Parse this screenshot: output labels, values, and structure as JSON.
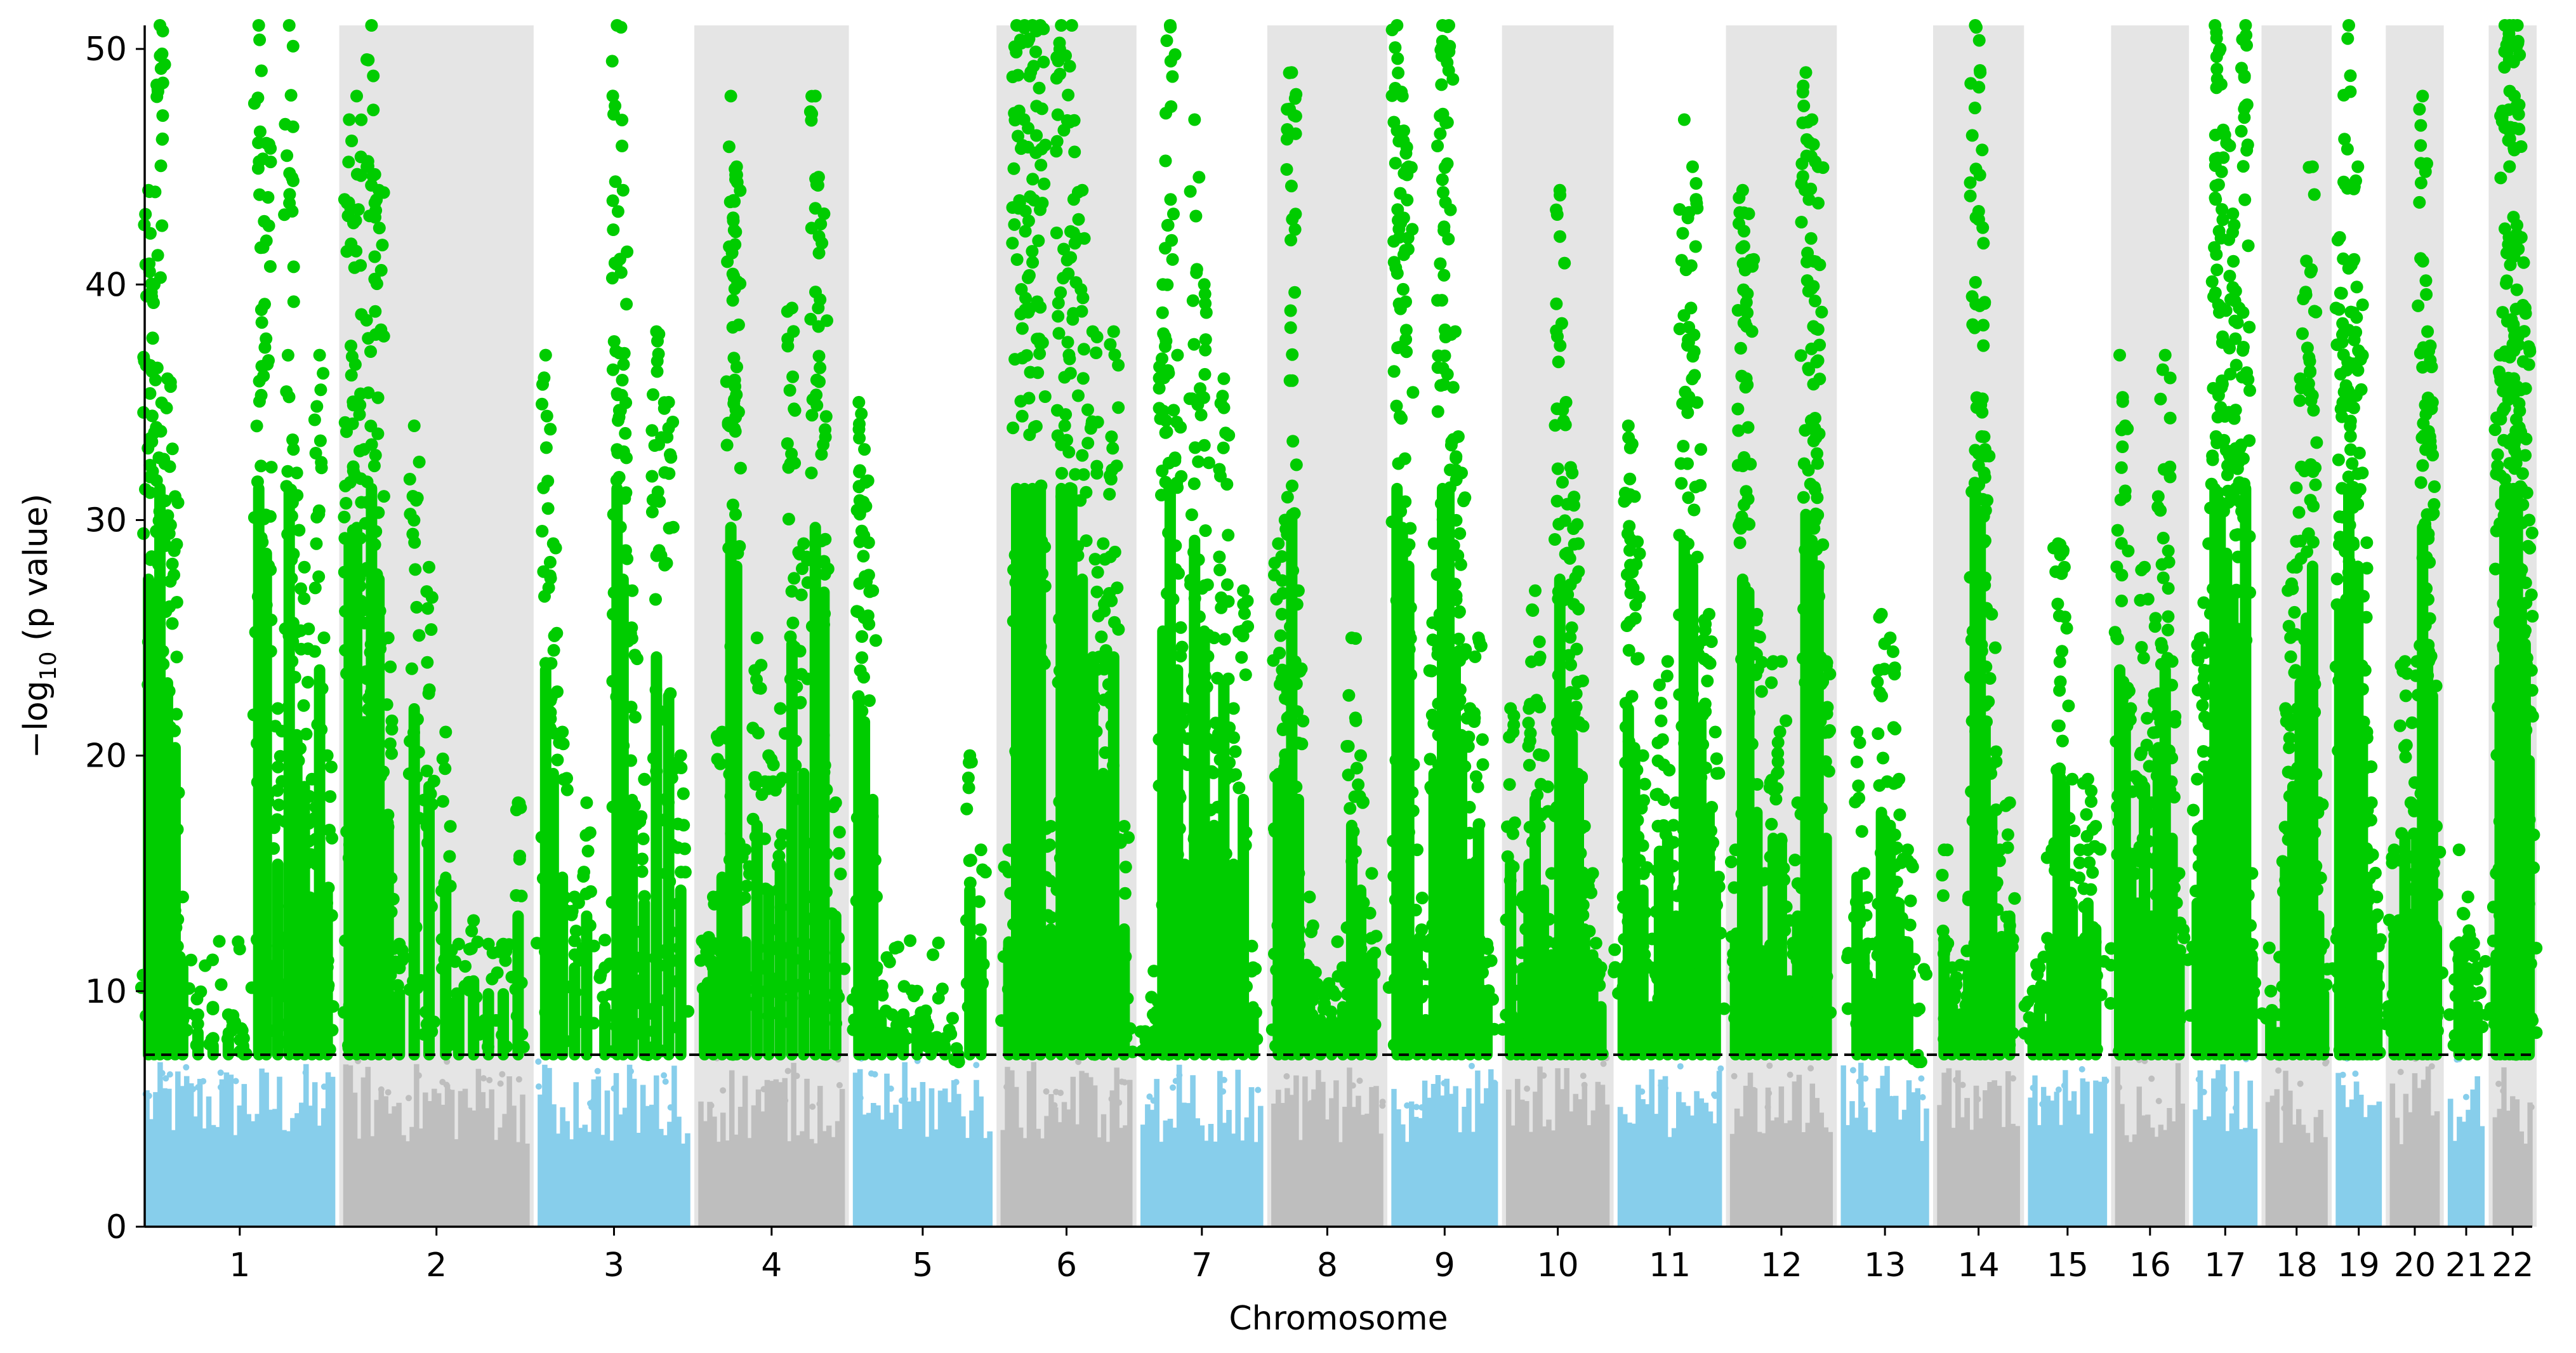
{
  "chart_data": {
    "type": "scatter",
    "subtype": "manhattan",
    "xlabel": "Chromosome",
    "ylabel": {
      "prefix": "−log",
      "subscript": "10",
      "suffix": " (p value)"
    },
    "ylim": [
      0,
      51
    ],
    "yticks": [
      0,
      10,
      20,
      30,
      40,
      50
    ],
    "significance_threshold": 7.3,
    "threshold_line_style": "dashed",
    "grid": false,
    "legend": "none",
    "colors": {
      "significant": "#00cc00",
      "chrom_odd": "#87ceeb",
      "chrom_even": "#bebebe",
      "band": "#e5e5e5",
      "threshold": "#000000"
    },
    "chromosomes": [
      {
        "label": "1",
        "length": 248,
        "peaks": [
          [
            0.02,
            44
          ],
          [
            0.05,
            40
          ],
          [
            0.08,
            51
          ],
          [
            0.12,
            36
          ],
          [
            0.16,
            31
          ],
          [
            0.2,
            14
          ],
          [
            0.28,
            9
          ],
          [
            0.36,
            8
          ],
          [
            0.44,
            9
          ],
          [
            0.52,
            8
          ],
          [
            0.6,
            51
          ],
          [
            0.64,
            46
          ],
          [
            0.7,
            22
          ],
          [
            0.76,
            51
          ],
          [
            0.8,
            32
          ],
          [
            0.84,
            28
          ],
          [
            0.88,
            19
          ],
          [
            0.92,
            37
          ],
          [
            0.96,
            20
          ]
        ]
      },
      {
        "label": "2",
        "length": 242,
        "peaks": [
          [
            0.03,
            47
          ],
          [
            0.07,
            48
          ],
          [
            0.11,
            33
          ],
          [
            0.15,
            51
          ],
          [
            0.19,
            44
          ],
          [
            0.24,
            25
          ],
          [
            0.3,
            12
          ],
          [
            0.38,
            34
          ],
          [
            0.46,
            28
          ],
          [
            0.55,
            21
          ],
          [
            0.62,
            12
          ],
          [
            0.7,
            13
          ],
          [
            0.78,
            12
          ],
          [
            0.86,
            12
          ],
          [
            0.94,
            18
          ]
        ]
      },
      {
        "label": "3",
        "length": 198,
        "peaks": [
          [
            0.05,
            37
          ],
          [
            0.1,
            29
          ],
          [
            0.16,
            21
          ],
          [
            0.24,
            14
          ],
          [
            0.32,
            18
          ],
          [
            0.44,
            11
          ],
          [
            0.52,
            51
          ],
          [
            0.56,
            44
          ],
          [
            0.62,
            27
          ],
          [
            0.7,
            19
          ],
          [
            0.78,
            38
          ],
          [
            0.86,
            35
          ],
          [
            0.94,
            20
          ]
        ]
      },
      {
        "label": "4",
        "length": 190,
        "peaks": [
          [
            0.04,
            12
          ],
          [
            0.1,
            14
          ],
          [
            0.16,
            21
          ],
          [
            0.22,
            48
          ],
          [
            0.26,
            45
          ],
          [
            0.32,
            16
          ],
          [
            0.4,
            25
          ],
          [
            0.48,
            20
          ],
          [
            0.56,
            22
          ],
          [
            0.64,
            39
          ],
          [
            0.72,
            29
          ],
          [
            0.8,
            48
          ],
          [
            0.86,
            43
          ],
          [
            0.94,
            18
          ]
        ]
      },
      {
        "label": "5",
        "length": 181,
        "peaks": [
          [
            0.04,
            35
          ],
          [
            0.08,
            33
          ],
          [
            0.14,
            27
          ],
          [
            0.2,
            10
          ],
          [
            0.28,
            9
          ],
          [
            0.36,
            9
          ],
          [
            0.46,
            10
          ],
          [
            0.56,
            8
          ],
          [
            0.66,
            8
          ],
          [
            0.76,
            7
          ],
          [
            0.84,
            20
          ],
          [
            0.92,
            16
          ]
        ]
      },
      {
        "label": "6",
        "length": 171,
        "peaks": [
          [
            0.06,
            16
          ],
          [
            0.12,
            51
          ],
          [
            0.18,
            51
          ],
          [
            0.24,
            51
          ],
          [
            0.3,
            51
          ],
          [
            0.38,
            17
          ],
          [
            0.46,
            51
          ],
          [
            0.54,
            51
          ],
          [
            0.62,
            44
          ],
          [
            0.7,
            38
          ],
          [
            0.78,
            29
          ],
          [
            0.86,
            38
          ],
          [
            0.94,
            17
          ]
        ]
      },
      {
        "label": "7",
        "length": 159,
        "peaks": [
          [
            0.04,
            8
          ],
          [
            0.1,
            9
          ],
          [
            0.18,
            40
          ],
          [
            0.24,
            51
          ],
          [
            0.3,
            37
          ],
          [
            0.36,
            22
          ],
          [
            0.44,
            47
          ],
          [
            0.52,
            40
          ],
          [
            0.6,
            25
          ],
          [
            0.68,
            36
          ],
          [
            0.76,
            22
          ],
          [
            0.84,
            27
          ],
          [
            0.92,
            11
          ]
        ]
      },
      {
        "label": "8",
        "length": 145,
        "peaks": [
          [
            0.06,
            29
          ],
          [
            0.12,
            30
          ],
          [
            0.18,
            49
          ],
          [
            0.24,
            27
          ],
          [
            0.34,
            14
          ],
          [
            0.44,
            10
          ],
          [
            0.54,
            10
          ],
          [
            0.64,
            11
          ],
          [
            0.72,
            25
          ],
          [
            0.8,
            20
          ],
          [
            0.9,
            15
          ]
        ]
      },
      {
        "label": "9",
        "length": 138,
        "peaks": [
          [
            0.05,
            51
          ],
          [
            0.1,
            48
          ],
          [
            0.16,
            45
          ],
          [
            0.24,
            16
          ],
          [
            0.32,
            10
          ],
          [
            0.4,
            29
          ],
          [
            0.48,
            51
          ],
          [
            0.54,
            51
          ],
          [
            0.6,
            38
          ],
          [
            0.66,
            32
          ],
          [
            0.74,
            22
          ],
          [
            0.82,
            25
          ],
          [
            0.9,
            12
          ]
        ]
      },
      {
        "label": "10",
        "length": 134,
        "peaks": [
          [
            0.04,
            22
          ],
          [
            0.1,
            10
          ],
          [
            0.16,
            14
          ],
          [
            0.22,
            22
          ],
          [
            0.28,
            27
          ],
          [
            0.36,
            20
          ],
          [
            0.44,
            15
          ],
          [
            0.52,
            44
          ],
          [
            0.58,
            35
          ],
          [
            0.64,
            32
          ],
          [
            0.7,
            29
          ],
          [
            0.76,
            17
          ],
          [
            0.84,
            15
          ],
          [
            0.92,
            11
          ]
        ]
      },
      {
        "label": "11",
        "length": 135,
        "peaks": [
          [
            0.05,
            14
          ],
          [
            0.1,
            34
          ],
          [
            0.16,
            31
          ],
          [
            0.24,
            20
          ],
          [
            0.32,
            11
          ],
          [
            0.4,
            23
          ],
          [
            0.48,
            24
          ],
          [
            0.56,
            18
          ],
          [
            0.64,
            47
          ],
          [
            0.72,
            45
          ],
          [
            0.8,
            33
          ],
          [
            0.88,
            26
          ],
          [
            0.94,
            21
          ]
        ]
      },
      {
        "label": "12",
        "length": 133,
        "peaks": [
          [
            0.05,
            16
          ],
          [
            0.12,
            44
          ],
          [
            0.18,
            43
          ],
          [
            0.26,
            26
          ],
          [
            0.34,
            15
          ],
          [
            0.42,
            24
          ],
          [
            0.5,
            24
          ],
          [
            0.58,
            13
          ],
          [
            0.66,
            18
          ],
          [
            0.74,
            49
          ],
          [
            0.8,
            47
          ],
          [
            0.86,
            45
          ],
          [
            0.94,
            24
          ]
        ]
      },
      {
        "label": "13",
        "length": 114,
        "peaks": [
          [
            0.18,
            21
          ],
          [
            0.26,
            15
          ],
          [
            0.36,
            12
          ],
          [
            0.46,
            26
          ],
          [
            0.56,
            25
          ],
          [
            0.66,
            19
          ],
          [
            0.76,
            16
          ],
          [
            0.88,
            7
          ]
        ]
      },
      {
        "label": "14",
        "length": 107,
        "peaks": [
          [
            0.08,
            16
          ],
          [
            0.18,
            11
          ],
          [
            0.28,
            9
          ],
          [
            0.38,
            14
          ],
          [
            0.46,
            51
          ],
          [
            0.52,
            49
          ],
          [
            0.58,
            33
          ],
          [
            0.66,
            26
          ],
          [
            0.76,
            16
          ],
          [
            0.88,
            18
          ]
        ]
      },
      {
        "label": "15",
        "length": 102,
        "peaks": [
          [
            0.06,
            10
          ],
          [
            0.14,
            11
          ],
          [
            0.22,
            8
          ],
          [
            0.3,
            16
          ],
          [
            0.38,
            29
          ],
          [
            0.46,
            28
          ],
          [
            0.56,
            19
          ],
          [
            0.66,
            16
          ],
          [
            0.76,
            19
          ],
          [
            0.86,
            17
          ]
        ]
      },
      {
        "label": "16",
        "length": 90,
        "peaks": [
          [
            0.06,
            37
          ],
          [
            0.14,
            34
          ],
          [
            0.22,
            22
          ],
          [
            0.32,
            19
          ],
          [
            0.42,
            28
          ],
          [
            0.52,
            18
          ],
          [
            0.62,
            31
          ],
          [
            0.72,
            37
          ],
          [
            0.82,
            24
          ],
          [
            0.92,
            15
          ]
        ]
      },
      {
        "label": "17",
        "length": 83,
        "peaks": [
          [
            0.06,
            19
          ],
          [
            0.14,
            25
          ],
          [
            0.24,
            29
          ],
          [
            0.34,
            51
          ],
          [
            0.42,
            50
          ],
          [
            0.52,
            46
          ],
          [
            0.62,
            43
          ],
          [
            0.72,
            39
          ],
          [
            0.82,
            51
          ],
          [
            0.92,
            15
          ]
        ]
      },
      {
        "label": "18",
        "length": 80,
        "peaks": [
          [
            0.08,
            10
          ],
          [
            0.2,
            9
          ],
          [
            0.32,
            22
          ],
          [
            0.44,
            28
          ],
          [
            0.56,
            36
          ],
          [
            0.66,
            41
          ],
          [
            0.76,
            45
          ],
          [
            0.86,
            18
          ],
          [
            0.94,
            12
          ]
        ]
      },
      {
        "label": "19",
        "length": 59,
        "peaks": [
          [
            0.08,
            42
          ],
          [
            0.18,
            38
          ],
          [
            0.28,
            51
          ],
          [
            0.38,
            41
          ],
          [
            0.48,
            45
          ],
          [
            0.58,
            32
          ],
          [
            0.68,
            21
          ],
          [
            0.78,
            18
          ],
          [
            0.9,
            14
          ]
        ]
      },
      {
        "label": "20",
        "length": 64,
        "peaks": [
          [
            0.08,
            16
          ],
          [
            0.18,
            13
          ],
          [
            0.3,
            24
          ],
          [
            0.42,
            18
          ],
          [
            0.54,
            24
          ],
          [
            0.66,
            48
          ],
          [
            0.76,
            38
          ],
          [
            0.86,
            35
          ],
          [
            0.94,
            17
          ]
        ]
      },
      {
        "label": "21",
        "length": 47,
        "peaks": [
          [
            0.3,
            16
          ],
          [
            0.55,
            14
          ],
          [
            0.8,
            11
          ]
        ]
      },
      {
        "label": "22",
        "length": 51,
        "peaks": [
          [
            0.08,
            15
          ],
          [
            0.18,
            37
          ],
          [
            0.3,
            51
          ],
          [
            0.42,
            51
          ],
          [
            0.52,
            51
          ],
          [
            0.62,
            51
          ],
          [
            0.72,
            42
          ],
          [
            0.82,
            39
          ],
          [
            0.92,
            30
          ]
        ]
      }
    ]
  }
}
